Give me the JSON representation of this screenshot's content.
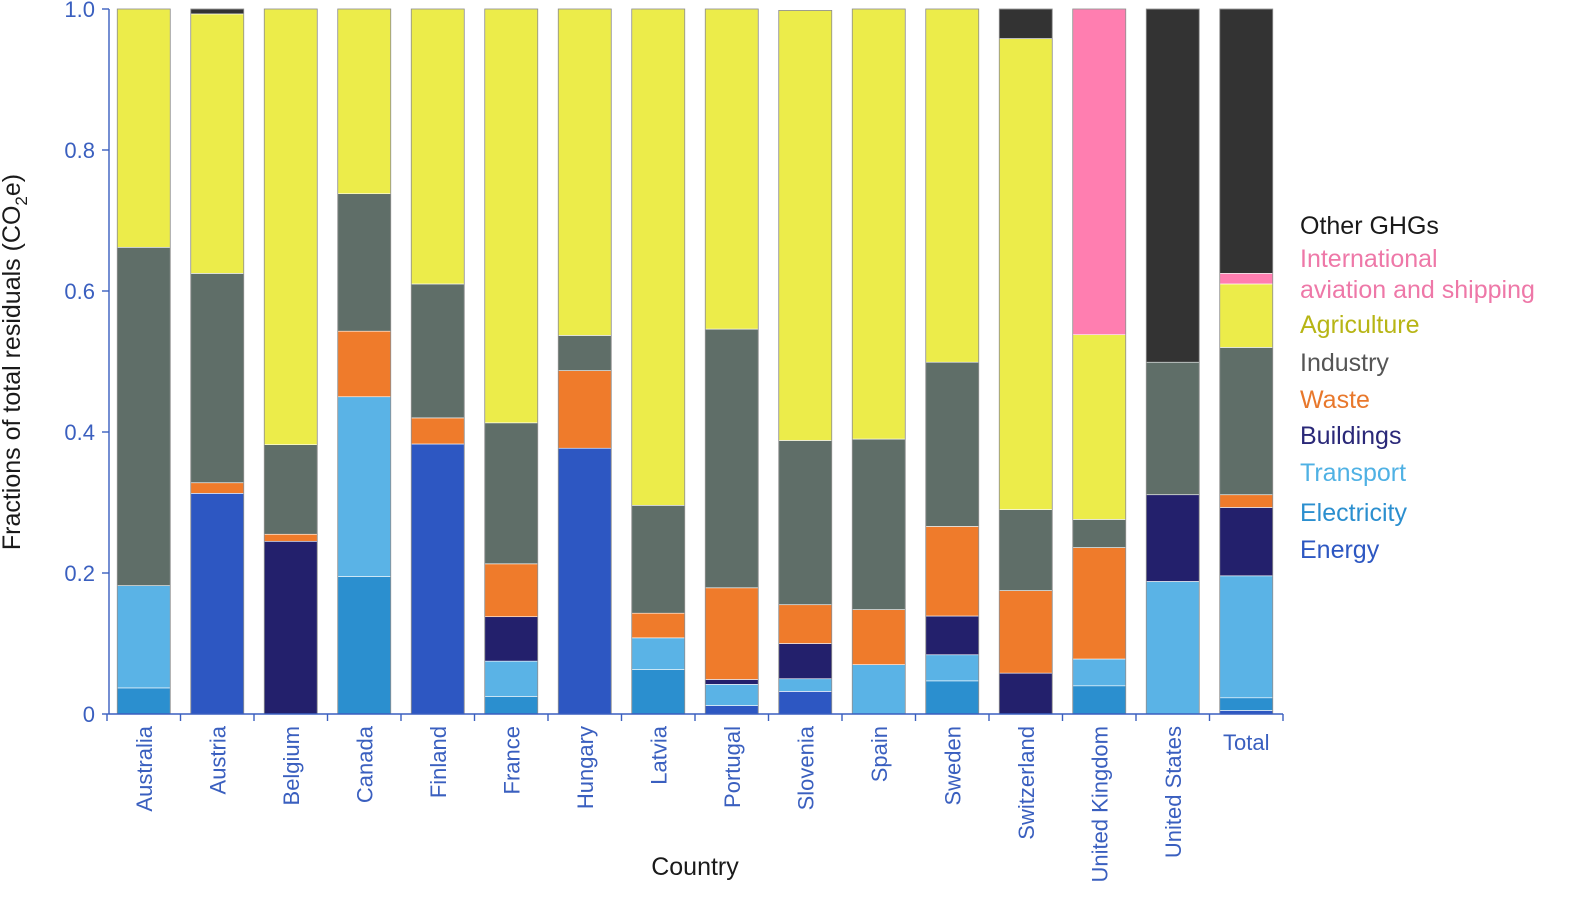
{
  "chart_data": {
    "type": "bar",
    "stacked": true,
    "title": "",
    "xlabel": "Country",
    "ylabel": "Fractions of total residuals (CO",
    "ylabel_sub": "2",
    "ylabel_suffix": "e)",
    "ylim": [
      0,
      1.0
    ],
    "yticks": [
      {
        "value": 0,
        "label": "0"
      },
      {
        "value": 0.2,
        "label": "0.2"
      },
      {
        "value": 0.4,
        "label": "0.4"
      },
      {
        "value": 0.6,
        "label": "0.6"
      },
      {
        "value": 0.8,
        "label": "0.8"
      },
      {
        "value": 1.0,
        "label": "1.0"
      }
    ],
    "categories": [
      "Australia",
      "Austria",
      "Belgium",
      "Canada",
      "Finland",
      "France",
      "Hungary",
      "Latvia",
      "Portugal",
      "Slovenia",
      "Spain",
      "Sweden",
      "Switzerland",
      "United Kingdom",
      "United States",
      "Total"
    ],
    "series": [
      {
        "name": "Energy",
        "color": "#2d57c2",
        "values": [
          0,
          0.313,
          0,
          0,
          0.383,
          0,
          0.377,
          0,
          0.012,
          0.032,
          0,
          0,
          0,
          0,
          0,
          0.005
        ]
      },
      {
        "name": "Electricity",
        "color": "#2b8fcf",
        "values": [
          0.037,
          0,
          0,
          0.195,
          0,
          0.025,
          0,
          0.063,
          0,
          0,
          0,
          0.047,
          0,
          0.04,
          0,
          0.018
        ]
      },
      {
        "name": "Transport",
        "color": "#5ab3e6",
        "values": [
          0.145,
          0,
          0,
          0.255,
          0,
          0.05,
          0,
          0.045,
          0.03,
          0.018,
          0.07,
          0.037,
          0,
          0.038,
          0.188,
          0.173
        ]
      },
      {
        "name": "Buildings",
        "color": "#23206c",
        "values": [
          0,
          0,
          0.245,
          0,
          0,
          0.063,
          0,
          0,
          0.007,
          0.05,
          0,
          0.055,
          0.058,
          0,
          0.123,
          0.097
        ]
      },
      {
        "name": "Waste",
        "color": "#ef7b2b",
        "values": [
          0,
          0.015,
          0.01,
          0.093,
          0.037,
          0.075,
          0.11,
          0.035,
          0.13,
          0.055,
          0.078,
          0.127,
          0.117,
          0.158,
          0,
          0.018
        ]
      },
      {
        "name": "Industry",
        "color": "#5f6e68",
        "values": [
          0.48,
          0.297,
          0.127,
          0.195,
          0.19,
          0.2,
          0.05,
          0.153,
          0.367,
          0.233,
          0.242,
          0.233,
          0.115,
          0.04,
          0.188,
          0.209
        ]
      },
      {
        "name": "Agriculture",
        "color": "#ecec4a",
        "values": [
          0.338,
          0.368,
          0.618,
          0.262,
          0.39,
          0.587,
          0.463,
          0.704,
          0.454,
          0.61,
          0.61,
          0.501,
          0.668,
          0.262,
          0,
          0.09
        ]
      },
      {
        "name": "International aviation and shipping",
        "color": "#ff7eb0",
        "values": [
          0,
          0,
          0,
          0,
          0,
          0,
          0,
          0,
          0,
          0,
          0,
          0,
          0,
          0.462,
          0,
          0.015
        ]
      },
      {
        "name": "Other GHGs",
        "color": "#333333",
        "values": [
          0,
          0.007,
          0,
          0,
          0,
          0,
          0,
          0,
          0,
          0,
          0,
          0,
          0.042,
          0,
          0.501,
          0.375
        ]
      }
    ],
    "legend": {
      "placement": "right",
      "entries": [
        {
          "label": "Other GHGs",
          "color": "#1a1a1a"
        },
        {
          "label": "International",
          "color": "#ee78a8"
        },
        {
          "label": "aviation and shipping",
          "color": "#ee78a8"
        },
        {
          "label": "Agriculture",
          "color": "#b7b515"
        },
        {
          "label": "Industry",
          "color": "#555555"
        },
        {
          "label": "Waste",
          "color": "#e8782c"
        },
        {
          "label": "Buildings",
          "color": "#2a2878"
        },
        {
          "label": "Transport",
          "color": "#4fb1e4"
        },
        {
          "label": "Electricity",
          "color": "#2b8fcf"
        },
        {
          "label": "Energy",
          "color": "#2d57c2"
        }
      ]
    },
    "axis_color": "#3a5fbf",
    "grid": false
  }
}
